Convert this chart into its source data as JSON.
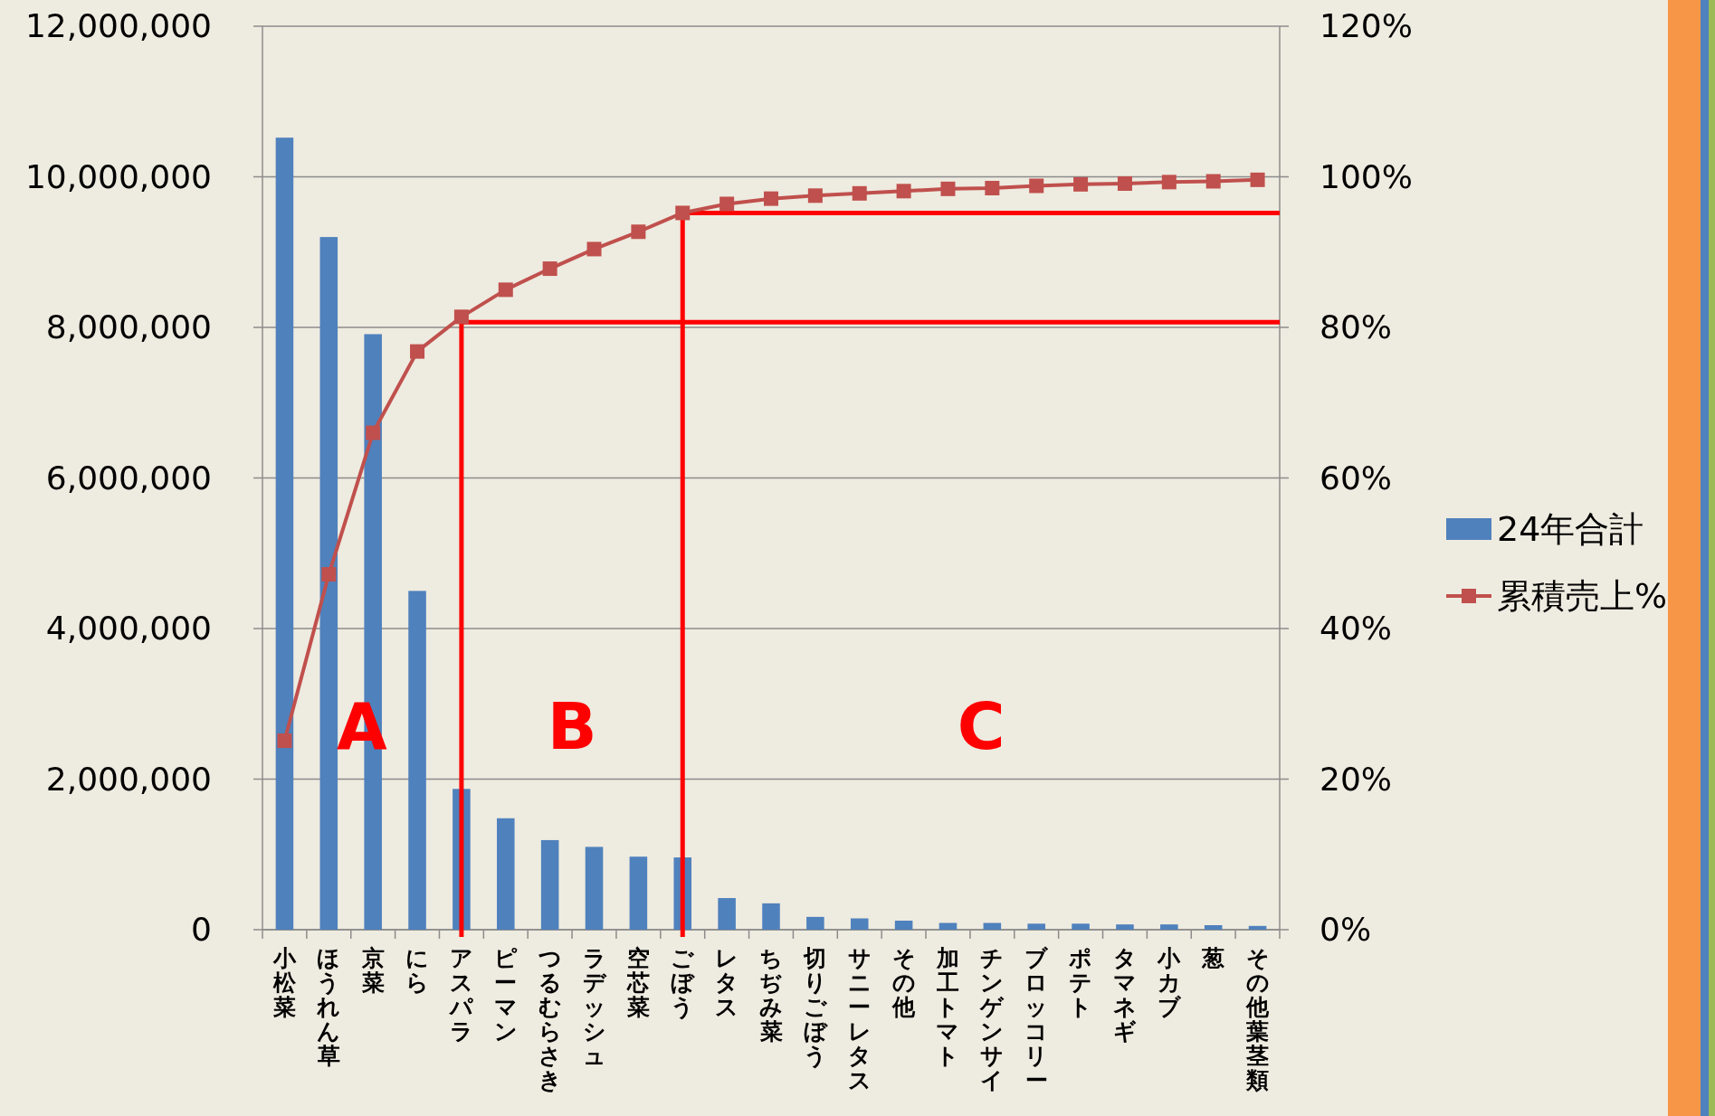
{
  "chart_data": {
    "type": "bar",
    "categories": [
      "小松菜",
      "ほうれん草",
      "京菜",
      "にら",
      "アスパラ",
      "ピーマン",
      "つるむらさき",
      "ラデッシュ",
      "空芯菜",
      "ごぼう",
      "レタス",
      "ちぢみ菜",
      "切りごぼう",
      "サニーレタス",
      "その他",
      "加工トマト",
      "チンゲンサイ",
      "ブロッコリー",
      "ポテト",
      "タマネギ",
      "小カブ",
      "葱",
      "その他葉茎類"
    ],
    "ylim": [
      0,
      12000000
    ],
    "yticks": [
      {
        "value": 0,
        "label": "0"
      },
      {
        "value": 2000000,
        "label": "2,000,000"
      },
      {
        "value": 4000000,
        "label": "4,000,000"
      },
      {
        "value": 6000000,
        "label": "6,000,000"
      },
      {
        "value": 8000000,
        "label": "8,000,000"
      },
      {
        "value": 10000000,
        "label": "10,000,000"
      },
      {
        "value": 12000000,
        "label": "12,000,000"
      }
    ],
    "y2lim": [
      0,
      120
    ],
    "y2ticks": [
      {
        "value": 0,
        "label": "0%"
      },
      {
        "value": 20,
        "label": "20%"
      },
      {
        "value": 40,
        "label": "40%"
      },
      {
        "value": 60,
        "label": "60%"
      },
      {
        "value": 80,
        "label": "80%"
      },
      {
        "value": 100,
        "label": "100%"
      },
      {
        "value": 120,
        "label": "120%"
      }
    ],
    "series": [
      {
        "name": "24年合計",
        "type": "bar",
        "color": "#4f81bd",
        "values": [
          10520000,
          9200000,
          7910000,
          4500000,
          1870000,
          1480000,
          1190000,
          1100000,
          970000,
          960000,
          420000,
          350000,
          170000,
          150000,
          120000,
          90000,
          90000,
          80000,
          80000,
          70000,
          70000,
          60000,
          50000
        ]
      },
      {
        "name": "累積売上%",
        "type": "line",
        "axis": "y2",
        "color": "#c0504d",
        "values": [
          25.1,
          47.2,
          66.0,
          76.8,
          81.4,
          85.0,
          87.8,
          90.4,
          92.7,
          95.2,
          96.4,
          97.1,
          97.5,
          97.8,
          98.1,
          98.4,
          98.5,
          98.8,
          99.0,
          99.1,
          99.3,
          99.4,
          99.6
        ]
      }
    ],
    "marker": "square",
    "grid": "y",
    "legend": "right",
    "ref_lines": [
      {
        "axis": "x",
        "value": "アスパラ",
        "color": "#ff0000"
      },
      {
        "axis": "x",
        "value": "ごぼう",
        "color": "#ff0000"
      },
      {
        "axis": "y2",
        "value": 80.7,
        "color": "#ff0000"
      },
      {
        "axis": "y2",
        "value": 95.2,
        "color": "#ff0000"
      }
    ],
    "annotations": [
      "A",
      "B",
      "C"
    ]
  }
}
